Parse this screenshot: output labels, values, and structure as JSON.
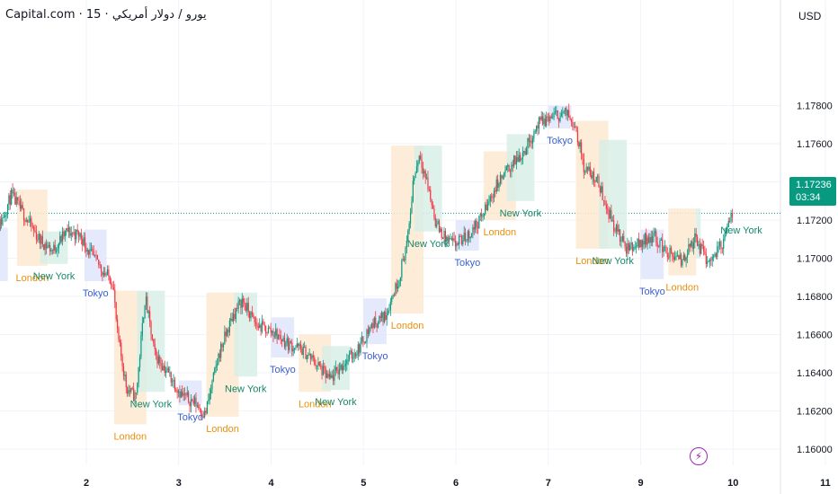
{
  "header": {
    "title": "Capital.com · 15 · يورو / دولار أمريكي",
    "currency": "USD"
  },
  "last_price": {
    "value": "1.17236",
    "countdown": "03:34",
    "color": "#089981"
  },
  "flash_icon": "lightning-icon",
  "colors": {
    "up": "#089981",
    "down": "#f23645",
    "tokyo_fill": "#dfe6fb",
    "tokyo_text": "#3b5fd1",
    "london_fill": "#fde9d0",
    "london_text": "#e8900c",
    "newyork_fill": "#d9efe8",
    "newyork_text": "#17876b",
    "grid": "#f0f3fa"
  },
  "chart_data": {
    "type": "candlestick",
    "symbol": "EUR/USD",
    "timeframe": "15",
    "x_tick_labels": [
      "2",
      "3",
      "4",
      "5",
      "6",
      "7",
      "9",
      "10",
      "11"
    ],
    "y_tick_labels": [
      "1.17800",
      "1.17600",
      "1.17400",
      "1.17200",
      "1.17000",
      "1.16800",
      "1.16600",
      "1.16400",
      "1.16200",
      "1.16000"
    ],
    "ylim": [
      1.1596,
      1.1797
    ],
    "grid": true,
    "price_path": [
      {
        "d": 1.0,
        "p": 1.1711
      },
      {
        "d": 1.1,
        "p": 1.172
      },
      {
        "d": 1.2,
        "p": 1.1733
      },
      {
        "d": 1.35,
        "p": 1.1722
      },
      {
        "d": 1.5,
        "p": 1.171
      },
      {
        "d": 1.65,
        "p": 1.1704
      },
      {
        "d": 1.8,
        "p": 1.1714
      },
      {
        "d": 1.95,
        "p": 1.1712
      },
      {
        "d": 2.05,
        "p": 1.1703
      },
      {
        "d": 2.2,
        "p": 1.1693
      },
      {
        "d": 2.3,
        "p": 1.1688
      },
      {
        "d": 2.35,
        "p": 1.166
      },
      {
        "d": 2.45,
        "p": 1.1632
      },
      {
        "d": 2.55,
        "p": 1.1627
      },
      {
        "d": 2.65,
        "p": 1.168
      },
      {
        "d": 2.75,
        "p": 1.165
      },
      {
        "d": 2.9,
        "p": 1.164
      },
      {
        "d": 3.05,
        "p": 1.1628
      },
      {
        "d": 3.2,
        "p": 1.1624
      },
      {
        "d": 3.3,
        "p": 1.1618
      },
      {
        "d": 3.45,
        "p": 1.165
      },
      {
        "d": 3.6,
        "p": 1.167
      },
      {
        "d": 3.7,
        "p": 1.1678
      },
      {
        "d": 3.85,
        "p": 1.1665
      },
      {
        "d": 4.05,
        "p": 1.1661
      },
      {
        "d": 4.2,
        "p": 1.1655
      },
      {
        "d": 4.35,
        "p": 1.1652
      },
      {
        "d": 4.5,
        "p": 1.1645
      },
      {
        "d": 4.65,
        "p": 1.1636
      },
      {
        "d": 4.8,
        "p": 1.1645
      },
      {
        "d": 4.95,
        "p": 1.1652
      },
      {
        "d": 5.1,
        "p": 1.1665
      },
      {
        "d": 5.25,
        "p": 1.167
      },
      {
        "d": 5.4,
        "p": 1.169
      },
      {
        "d": 5.5,
        "p": 1.1712
      },
      {
        "d": 5.55,
        "p": 1.174
      },
      {
        "d": 5.62,
        "p": 1.1755
      },
      {
        "d": 5.7,
        "p": 1.174
      },
      {
        "d": 5.8,
        "p": 1.1718
      },
      {
        "d": 5.9,
        "p": 1.171
      },
      {
        "d": 6.0,
        "p": 1.1707
      },
      {
        "d": 6.15,
        "p": 1.1712
      },
      {
        "d": 6.3,
        "p": 1.1722
      },
      {
        "d": 6.45,
        "p": 1.1738
      },
      {
        "d": 6.6,
        "p": 1.1748
      },
      {
        "d": 6.75,
        "p": 1.1756
      },
      {
        "d": 6.9,
        "p": 1.177
      },
      {
        "d": 7.05,
        "p": 1.1774
      },
      {
        "d": 7.2,
        "p": 1.1776
      },
      {
        "d": 7.3,
        "p": 1.1771
      },
      {
        "d": 7.4,
        "p": 1.1748
      },
      {
        "d": 7.55,
        "p": 1.174
      },
      {
        "d": 7.7,
        "p": 1.172
      },
      {
        "d": 7.85,
        "p": 1.1705
      },
      {
        "d": 8.0,
        "p": 1.1708
      },
      {
        "d": 8.15,
        "p": 1.1712
      },
      {
        "d": 8.3,
        "p": 1.1703
      },
      {
        "d": 8.45,
        "p": 1.1698
      },
      {
        "d": 8.6,
        "p": 1.171
      },
      {
        "d": 8.75,
        "p": 1.1698
      },
      {
        "d": 8.9,
        "p": 1.1708
      },
      {
        "d": 9.0,
        "p": 1.1722
      }
    ],
    "sessions": [
      {
        "name": "Tokyo",
        "start": 0.98,
        "end": 1.15,
        "low": 1.1688,
        "high": 1.1716,
        "label_side": "none"
      },
      {
        "name": "London",
        "start": 1.25,
        "end": 1.58,
        "low": 1.1696,
        "high": 1.1736,
        "label_side": "below"
      },
      {
        "name": "New York",
        "start": 1.5,
        "end": 1.8,
        "low": 1.1697,
        "high": 1.1714,
        "label_side": "below"
      },
      {
        "name": "Tokyo",
        "start": 1.98,
        "end": 2.22,
        "low": 1.1688,
        "high": 1.1715,
        "label_side": "below"
      },
      {
        "name": "London",
        "start": 2.3,
        "end": 2.65,
        "low": 1.1613,
        "high": 1.1683,
        "label_side": "below"
      },
      {
        "name": "New York",
        "start": 2.55,
        "end": 2.85,
        "low": 1.163,
        "high": 1.1683,
        "label_side": "below"
      },
      {
        "name": "Tokyo",
        "start": 3.0,
        "end": 3.25,
        "low": 1.1623,
        "high": 1.1636,
        "label_side": "below"
      },
      {
        "name": "London",
        "start": 3.3,
        "end": 3.65,
        "low": 1.1617,
        "high": 1.1682,
        "label_side": "below"
      },
      {
        "name": "New York",
        "start": 3.6,
        "end": 3.85,
        "low": 1.1638,
        "high": 1.1682,
        "label_side": "below"
      },
      {
        "name": "Tokyo",
        "start": 4.0,
        "end": 4.25,
        "low": 1.1648,
        "high": 1.1669,
        "label_side": "below"
      },
      {
        "name": "London",
        "start": 4.3,
        "end": 4.65,
        "low": 1.163,
        "high": 1.166,
        "label_side": "below"
      },
      {
        "name": "New York",
        "start": 4.55,
        "end": 4.85,
        "low": 1.1631,
        "high": 1.1654,
        "label_side": "below"
      },
      {
        "name": "Tokyo",
        "start": 5.0,
        "end": 5.25,
        "low": 1.1655,
        "high": 1.1679,
        "label_side": "below"
      },
      {
        "name": "London",
        "start": 5.3,
        "end": 5.65,
        "low": 1.1671,
        "high": 1.1759,
        "label_side": "below"
      },
      {
        "name": "New York",
        "start": 5.55,
        "end": 5.85,
        "low": 1.1714,
        "high": 1.1759,
        "label_side": "below"
      },
      {
        "name": "Tokyo",
        "start": 6.0,
        "end": 6.25,
        "low": 1.1704,
        "high": 1.172,
        "label_side": "below"
      },
      {
        "name": "London",
        "start": 6.3,
        "end": 6.65,
        "low": 1.172,
        "high": 1.1756,
        "label_side": "below"
      },
      {
        "name": "New York",
        "start": 6.55,
        "end": 6.85,
        "low": 1.173,
        "high": 1.1765,
        "label_side": "below"
      },
      {
        "name": "Tokyo",
        "start": 7.0,
        "end": 7.25,
        "low": 1.1768,
        "high": 1.178,
        "label_side": "below"
      },
      {
        "name": "London",
        "start": 7.3,
        "end": 7.65,
        "low": 1.1705,
        "high": 1.1772,
        "label_side": "below"
      },
      {
        "name": "New York",
        "start": 7.55,
        "end": 7.85,
        "low": 1.1705,
        "high": 1.1762,
        "label_side": "below"
      },
      {
        "name": "Tokyo",
        "start": 8.0,
        "end": 8.25,
        "low": 1.1689,
        "high": 1.1715,
        "label_side": "below"
      },
      {
        "name": "London",
        "start": 8.3,
        "end": 8.6,
        "low": 1.1691,
        "high": 1.1726,
        "label_side": "below"
      },
      {
        "name": "New York",
        "start": 8.6,
        "end": 8.65,
        "low": 1.17,
        "high": 1.1726,
        "label_side": "right"
      }
    ]
  }
}
